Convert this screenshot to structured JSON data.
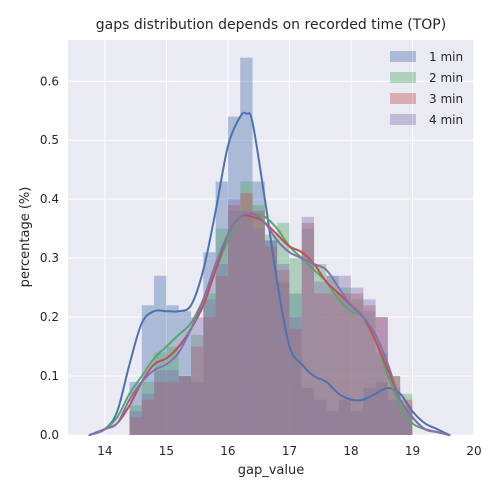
{
  "chart_data": {
    "type": "histogram",
    "title": "gaps distribution depends on recorded time (TOP)",
    "xlabel": "gap_value",
    "ylabel": "percentage (%)",
    "xlim": [
      13.4,
      20.0
    ],
    "ylim": [
      0.0,
      0.67
    ],
    "xticks": [
      14,
      15,
      16,
      17,
      18,
      19,
      20
    ],
    "yticks": [
      0.0,
      0.1,
      0.2,
      0.3,
      0.4,
      0.5,
      0.6
    ],
    "grid": true,
    "legend_position": "top-right",
    "bar_width": 0.2,
    "series": [
      {
        "name": "1 min",
        "color": "#4c72b0",
        "bins_start": [
          14.4,
          14.6,
          14.8,
          15.0,
          15.2,
          15.4,
          15.6,
          15.8,
          16.0,
          16.2,
          16.4,
          16.6,
          16.8,
          17.0,
          17.2,
          17.4,
          17.6,
          17.8,
          18.0,
          18.2,
          18.4,
          18.6,
          18.8
        ],
        "bin_heights": [
          0.09,
          0.22,
          0.27,
          0.22,
          0.21,
          0.09,
          0.31,
          0.43,
          0.54,
          0.64,
          0.43,
          0.33,
          0.26,
          0.24,
          0.08,
          0.06,
          0.04,
          0.06,
          0.04,
          0.08,
          0.09,
          0.06,
          0.05
        ],
        "kde": {
          "x": [
            13.75,
            14.0,
            14.2,
            14.4,
            14.6,
            14.8,
            15.0,
            15.2,
            15.4,
            15.6,
            15.8,
            16.0,
            16.2,
            16.3,
            16.4,
            16.6,
            16.8,
            17.0,
            17.2,
            17.4,
            17.6,
            17.8,
            18.0,
            18.2,
            18.4,
            18.6,
            18.8,
            19.0,
            19.2,
            19.4,
            19.6
          ],
          "y": [
            0.0,
            0.01,
            0.04,
            0.12,
            0.19,
            0.21,
            0.21,
            0.21,
            0.22,
            0.28,
            0.38,
            0.49,
            0.54,
            0.545,
            0.53,
            0.4,
            0.26,
            0.15,
            0.12,
            0.1,
            0.09,
            0.07,
            0.06,
            0.06,
            0.07,
            0.08,
            0.07,
            0.04,
            0.02,
            0.01,
            0.0
          ]
        }
      },
      {
        "name": "2 min",
        "color": "#55a868",
        "bins_start": [
          14.4,
          14.6,
          14.8,
          15.0,
          15.2,
          15.4,
          15.6,
          15.8,
          16.0,
          16.2,
          16.4,
          16.6,
          16.8,
          17.0,
          17.2,
          17.4,
          17.6,
          17.8,
          18.0,
          18.2,
          18.4,
          18.6,
          18.8
        ],
        "bin_heights": [
          0.05,
          0.09,
          0.14,
          0.15,
          0.1,
          0.17,
          0.24,
          0.35,
          0.38,
          0.43,
          0.39,
          0.34,
          0.36,
          0.3,
          0.35,
          0.29,
          0.27,
          0.25,
          0.23,
          0.21,
          0.14,
          0.1,
          0.07
        ],
        "kde": {
          "x": [
            13.75,
            14.0,
            14.2,
            14.4,
            14.6,
            14.8,
            15.0,
            15.2,
            15.4,
            15.6,
            15.8,
            16.0,
            16.2,
            16.4,
            16.6,
            16.8,
            17.0,
            17.2,
            17.4,
            17.6,
            17.8,
            18.0,
            18.2,
            18.4,
            18.6,
            18.8,
            19.0,
            19.2,
            19.4,
            19.6
          ],
          "y": [
            0.0,
            0.01,
            0.03,
            0.07,
            0.1,
            0.13,
            0.15,
            0.17,
            0.19,
            0.23,
            0.28,
            0.33,
            0.37,
            0.375,
            0.37,
            0.35,
            0.32,
            0.3,
            0.28,
            0.26,
            0.23,
            0.21,
            0.2,
            0.16,
            0.1,
            0.05,
            0.02,
            0.01,
            0.005,
            0.0
          ]
        }
      },
      {
        "name": "3 min",
        "color": "#c44e52",
        "bins_start": [
          14.4,
          14.6,
          14.8,
          15.0,
          15.2,
          15.4,
          15.6,
          15.8,
          16.0,
          16.2,
          16.4,
          16.6,
          16.8,
          17.0,
          17.2,
          17.4,
          17.6,
          17.8,
          18.0,
          18.2,
          18.4,
          18.6,
          18.8
        ],
        "bin_heights": [
          0.03,
          0.06,
          0.09,
          0.09,
          0.1,
          0.15,
          0.2,
          0.27,
          0.39,
          0.41,
          0.38,
          0.32,
          0.28,
          0.18,
          0.36,
          0.24,
          0.24,
          0.24,
          0.24,
          0.22,
          0.2,
          0.1,
          0.06
        ],
        "kde": {
          "x": [
            13.75,
            14.0,
            14.2,
            14.4,
            14.6,
            14.8,
            15.0,
            15.2,
            15.4,
            15.6,
            15.8,
            16.0,
            16.2,
            16.4,
            16.6,
            16.8,
            17.0,
            17.2,
            17.4,
            17.6,
            17.8,
            18.0,
            18.2,
            18.4,
            18.6,
            18.8,
            19.0,
            19.2,
            19.4,
            19.6
          ],
          "y": [
            0.0,
            0.01,
            0.02,
            0.05,
            0.09,
            0.12,
            0.13,
            0.15,
            0.18,
            0.22,
            0.28,
            0.34,
            0.37,
            0.37,
            0.36,
            0.34,
            0.32,
            0.31,
            0.29,
            0.26,
            0.24,
            0.22,
            0.2,
            0.16,
            0.11,
            0.06,
            0.03,
            0.01,
            0.005,
            0.0
          ]
        }
      },
      {
        "name": "4 min",
        "color": "#8172b2",
        "bins_start": [
          14.4,
          14.6,
          14.8,
          15.0,
          15.2,
          15.4,
          15.6,
          15.8,
          16.0,
          16.2,
          16.4,
          16.6,
          16.8,
          17.0,
          17.2,
          17.4,
          17.6,
          17.8,
          18.0,
          18.2,
          18.4,
          18.6,
          18.8
        ],
        "bin_heights": [
          0.04,
          0.07,
          0.11,
          0.11,
          0.1,
          0.2,
          0.23,
          0.29,
          0.4,
          0.38,
          0.35,
          0.33,
          0.29,
          0.2,
          0.37,
          0.26,
          0.27,
          0.27,
          0.25,
          0.23,
          0.2,
          0.08,
          0.04
        ],
        "kde": {
          "x": [
            13.75,
            14.0,
            14.2,
            14.4,
            14.6,
            14.8,
            15.0,
            15.2,
            15.4,
            15.6,
            15.8,
            16.0,
            16.2,
            16.4,
            16.6,
            16.8,
            17.0,
            17.2,
            17.4,
            17.6,
            17.8,
            18.0,
            18.2,
            18.4,
            18.6,
            18.8,
            19.0,
            19.2,
            19.4,
            19.6
          ],
          "y": [
            0.0,
            0.01,
            0.02,
            0.06,
            0.09,
            0.11,
            0.12,
            0.14,
            0.18,
            0.23,
            0.29,
            0.34,
            0.37,
            0.375,
            0.36,
            0.33,
            0.31,
            0.3,
            0.29,
            0.28,
            0.25,
            0.22,
            0.2,
            0.17,
            0.12,
            0.06,
            0.03,
            0.01,
            0.005,
            0.0
          ]
        }
      }
    ]
  }
}
